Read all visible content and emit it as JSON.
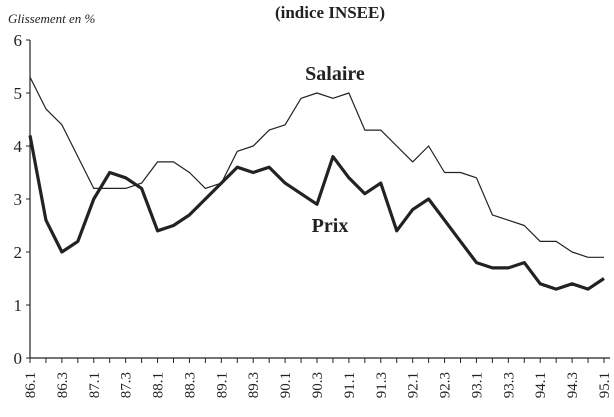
{
  "chart_data": {
    "type": "line",
    "title": "(indice INSEE)",
    "y_label": "Glissement en %",
    "categories": [
      "86.1",
      null,
      "86.3",
      null,
      "87.1",
      null,
      "87.3",
      null,
      "88.1",
      null,
      "88.3",
      null,
      "89.1",
      null,
      "89.3",
      null,
      "90.1",
      null,
      "90.3",
      null,
      "91.1",
      null,
      "91.3",
      null,
      "92.1",
      null,
      "92.3",
      null,
      "93.1",
      null,
      "93.3",
      null,
      "94.1",
      null,
      "94.3",
      null,
      "95.1"
    ],
    "series": [
      {
        "name": "Salaire",
        "color": "#222222",
        "width": 1.2,
        "values": [
          5.3,
          4.7,
          4.4,
          3.8,
          3.2,
          3.2,
          3.2,
          3.3,
          3.7,
          3.7,
          3.5,
          3.2,
          3.3,
          3.9,
          4.0,
          4.3,
          4.4,
          4.9,
          5.0,
          4.9,
          5.0,
          4.3,
          4.3,
          4.0,
          3.7,
          4.0,
          3.5,
          3.5,
          3.4,
          2.7,
          2.6,
          2.5,
          2.2,
          2.2,
          2.0,
          1.9,
          1.9
        ]
      },
      {
        "name": "Prix",
        "color": "#222222",
        "width": 3.2,
        "values": [
          4.2,
          2.6,
          2.0,
          2.2,
          3.0,
          3.5,
          3.4,
          3.2,
          2.4,
          2.5,
          2.7,
          3.0,
          3.3,
          3.6,
          3.5,
          3.6,
          3.3,
          3.1,
          2.9,
          3.8,
          3.4,
          3.1,
          3.3,
          2.4,
          2.8,
          3.0,
          2.6,
          2.2,
          1.8,
          1.7,
          1.7,
          1.8,
          1.4,
          1.3,
          1.4,
          1.3,
          1.5
        ]
      }
    ],
    "ylim": [
      0,
      6
    ],
    "yticks": [
      0,
      1,
      2,
      3,
      4,
      5,
      6
    ],
    "grid": false
  }
}
